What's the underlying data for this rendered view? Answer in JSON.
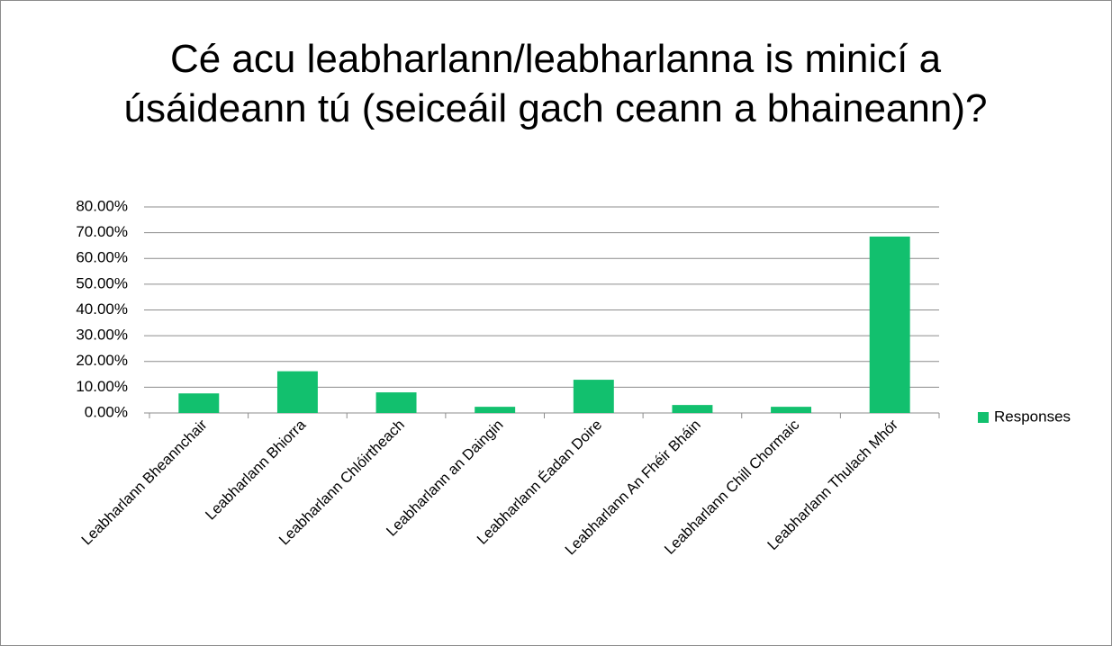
{
  "chart_data": {
    "type": "bar",
    "title": "Cé acu leabharlann/leabharlanna is minicí a úsáideann tú (seiceáil gach ceann a bhaineann)?",
    "categories": [
      "Leabharlann Bheannchair",
      "Leabharlann Bhiorra",
      "Leabharlann Chlóirtheach",
      "Leabharlann an Daingin",
      "Leabharlann Éadan Doire",
      "Leabharlann An Fhéir Bháin",
      "Leabharlann Chill Chormaic",
      "Leabharlann Thulach Mhór"
    ],
    "series": [
      {
        "name": "Responses",
        "color": "#12c06e",
        "values": [
          7.6,
          16.2,
          8.0,
          2.4,
          12.9,
          3.1,
          2.4,
          68.5
        ]
      }
    ],
    "ylim": [
      0,
      80
    ],
    "yticks": [
      {
        "value": 0,
        "label": "0.00%"
      },
      {
        "value": 10,
        "label": "10.00%"
      },
      {
        "value": 20,
        "label": "20.00%"
      },
      {
        "value": 30,
        "label": "30.00%"
      },
      {
        "value": 40,
        "label": "40.00%"
      },
      {
        "value": 50,
        "label": "50.00%"
      },
      {
        "value": 60,
        "label": "60.00%"
      },
      {
        "value": 70,
        "label": "70.00%"
      },
      {
        "value": 80,
        "label": "80.00%"
      }
    ],
    "grid": true,
    "legend": "right"
  }
}
